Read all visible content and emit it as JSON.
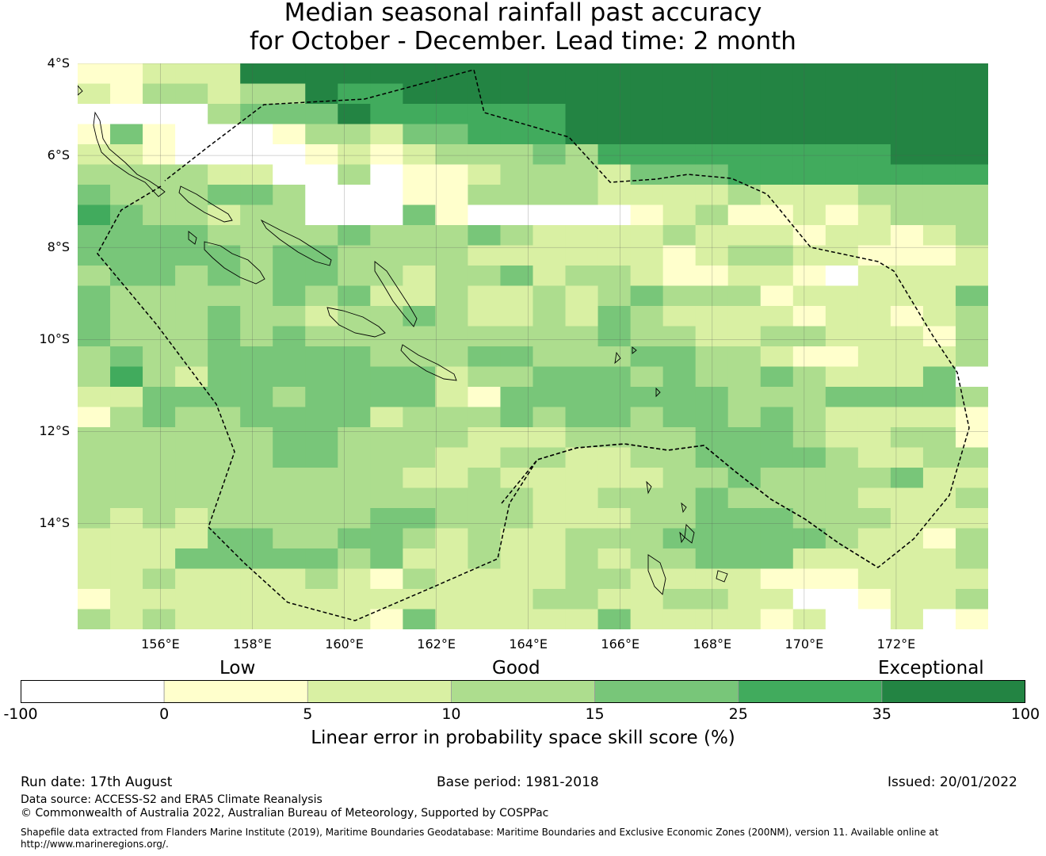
{
  "title": {
    "line1": "Median seasonal rainfall past accuracy",
    "line2": "for October - December. Lead time: 2 month"
  },
  "map": {
    "lon_range": [
      154.2,
      174.0
    ],
    "lat_range": [
      -16.3,
      -4.0
    ],
    "lat_ticks": [
      {
        "value": -4,
        "label": "4°S"
      },
      {
        "value": -6,
        "label": "6°S"
      },
      {
        "value": -8,
        "label": "8°S"
      },
      {
        "value": -10,
        "label": "10°S"
      },
      {
        "value": -12,
        "label": "12°S"
      },
      {
        "value": -14,
        "label": "14°S"
      }
    ],
    "lon_ticks": [
      {
        "value": 156,
        "label": "156°E"
      },
      {
        "value": 158,
        "label": "158°E"
      },
      {
        "value": 160,
        "label": "160°E"
      },
      {
        "value": 162,
        "label": "162°E"
      },
      {
        "value": 164,
        "label": "164°E"
      },
      {
        "value": 166,
        "label": "166°E"
      },
      {
        "value": 168,
        "label": "168°E"
      },
      {
        "value": 170,
        "label": "170°E"
      },
      {
        "value": 172,
        "label": "172°E"
      }
    ],
    "boundary_color": "#000000",
    "coast_color": "#000000"
  },
  "legend": {
    "categories": [
      {
        "label": "Low",
        "value": 0
      },
      {
        "label": "Good",
        "value": 15
      },
      {
        "label": "Exceptional",
        "value": 100
      }
    ],
    "bins": [
      {
        "from": -100,
        "to": 0,
        "color": "#ffffff"
      },
      {
        "from": 0,
        "to": 5,
        "color": "#ffffcc"
      },
      {
        "from": 5,
        "to": 10,
        "color": "#d9f0a3"
      },
      {
        "from": 10,
        "to": 15,
        "color": "#addd8e"
      },
      {
        "from": 15,
        "to": 25,
        "color": "#78c679"
      },
      {
        "from": 25,
        "to": 35,
        "color": "#41ab5d"
      },
      {
        "from": 35,
        "to": 100,
        "color": "#238443"
      }
    ],
    "tick_labels": [
      "-100",
      "0",
      "5",
      "10",
      "15",
      "25",
      "35",
      "100"
    ],
    "title": "Linear error in probability space skill score (%)"
  },
  "footer": {
    "run_date": "Run date: 17th August",
    "base_period": "Base period: 1981-2018",
    "issued": "Issued: 20/01/2022",
    "data_source": "Data source: ACCESS-S2 and ERA5 Climate Reanalysis",
    "copyright": "© Commonwealth of Australia 2022, Australian Bureau of Meteorology, Supported by COSPPac",
    "shapefile_line1": "Shapefile data extracted from Flanders Marine Institute (2019), Maritime Boundaries Geodatabase: Maritime Boundaries and Exclusive Economic Zones (200NM), version 11. Available online at",
    "shapefile_line2": "http://www.marineregions.org/."
  },
  "grid_cells": [
    "1122266666666666666666666666",
    "2133233655666666666666666666",
    "0000344465555556666666666666",
    "1410001332445556666666666666",
    "2210000121233343555555555666",
    "3333220030112333244455555555",
    "4333443000113333222232223333",
    "5433233000410000012311212333",
    "4444333343334322223222122123",
    "4444434433332222221233221112",
    "3443434433233423321122102222",
    "4333334342232232343331222224",
    "4333433233432232432222122123",
    "4333434333333333433223322213",
    "3433444443334433344332112223",
    "3532444444423344434334322240",
    "2244443444421444444433344443",
    "1343344442333434434434322221",
    "3333334433332223333444322331",
    "3333334433322332233444432233",
    "3333333333223222223343333422",
    "3333333333333322333433332223",
    "3232333334433322233444333222",
    "2222443344323223334444432213",
    "2224444434223223233444222223",
    "2232222321322223322221112222",
    "1222222222222233223322001223",
    "3232222221422222422221200201"
  ]
}
